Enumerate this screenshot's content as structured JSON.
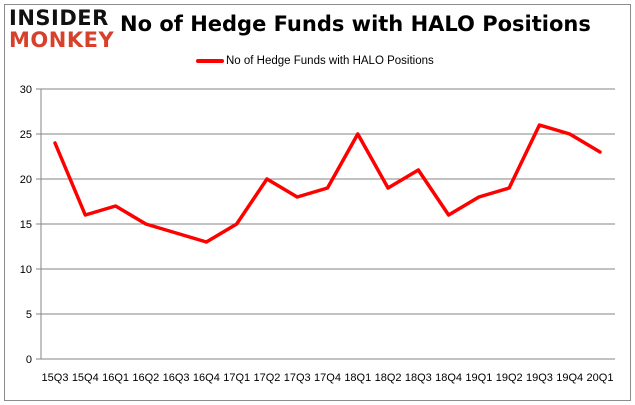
{
  "logo": {
    "line1": "INSIDER",
    "line2": "MONKEY"
  },
  "chart_data": {
    "type": "line",
    "title": "No of Hedge Funds with HALO Positions",
    "categories": [
      "15Q3",
      "15Q4",
      "16Q1",
      "16Q2",
      "16Q3",
      "16Q4",
      "17Q1",
      "17Q2",
      "17Q3",
      "17Q4",
      "18Q1",
      "18Q2",
      "18Q3",
      "18Q4",
      "19Q1",
      "19Q2",
      "19Q3",
      "19Q4",
      "20Q1"
    ],
    "series": [
      {
        "name": "No of Hedge Funds with HALO Positions",
        "color": "#ff0000",
        "values": [
          24,
          16,
          17,
          15,
          14,
          13,
          15,
          20,
          18,
          19,
          25,
          19,
          21,
          16,
          18,
          19,
          26,
          25,
          23
        ]
      }
    ],
    "yticks": [
      0,
      5,
      10,
      15,
      20,
      25,
      30
    ],
    "ylim": [
      0,
      30
    ],
    "grid": true,
    "legend": "top-center",
    "xlabel": "",
    "ylabel": ""
  }
}
